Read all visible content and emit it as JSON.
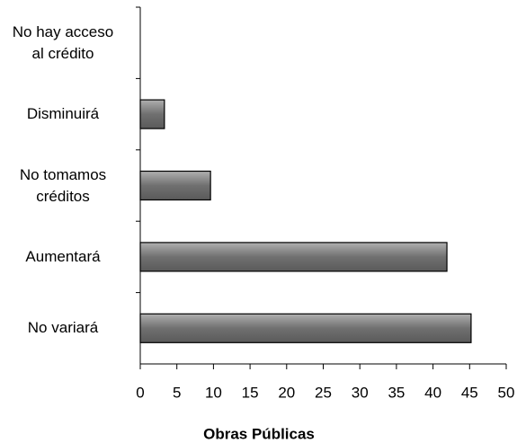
{
  "chart_data": {
    "type": "bar",
    "orientation": "horizontal",
    "x_label": "Obras Públicas",
    "categories": [
      "No hay acceso\nal crédito",
      "Disminuirá",
      "No tomamos\ncréditos",
      "Aumentará",
      "No variará"
    ],
    "values": [
      null,
      3.3,
      9.6,
      41.9,
      45.2
    ],
    "color": "#808080",
    "xlim": [
      0,
      50
    ],
    "xticks": [
      0,
      5,
      10,
      15,
      20,
      25,
      30,
      35,
      40,
      45,
      50
    ]
  }
}
